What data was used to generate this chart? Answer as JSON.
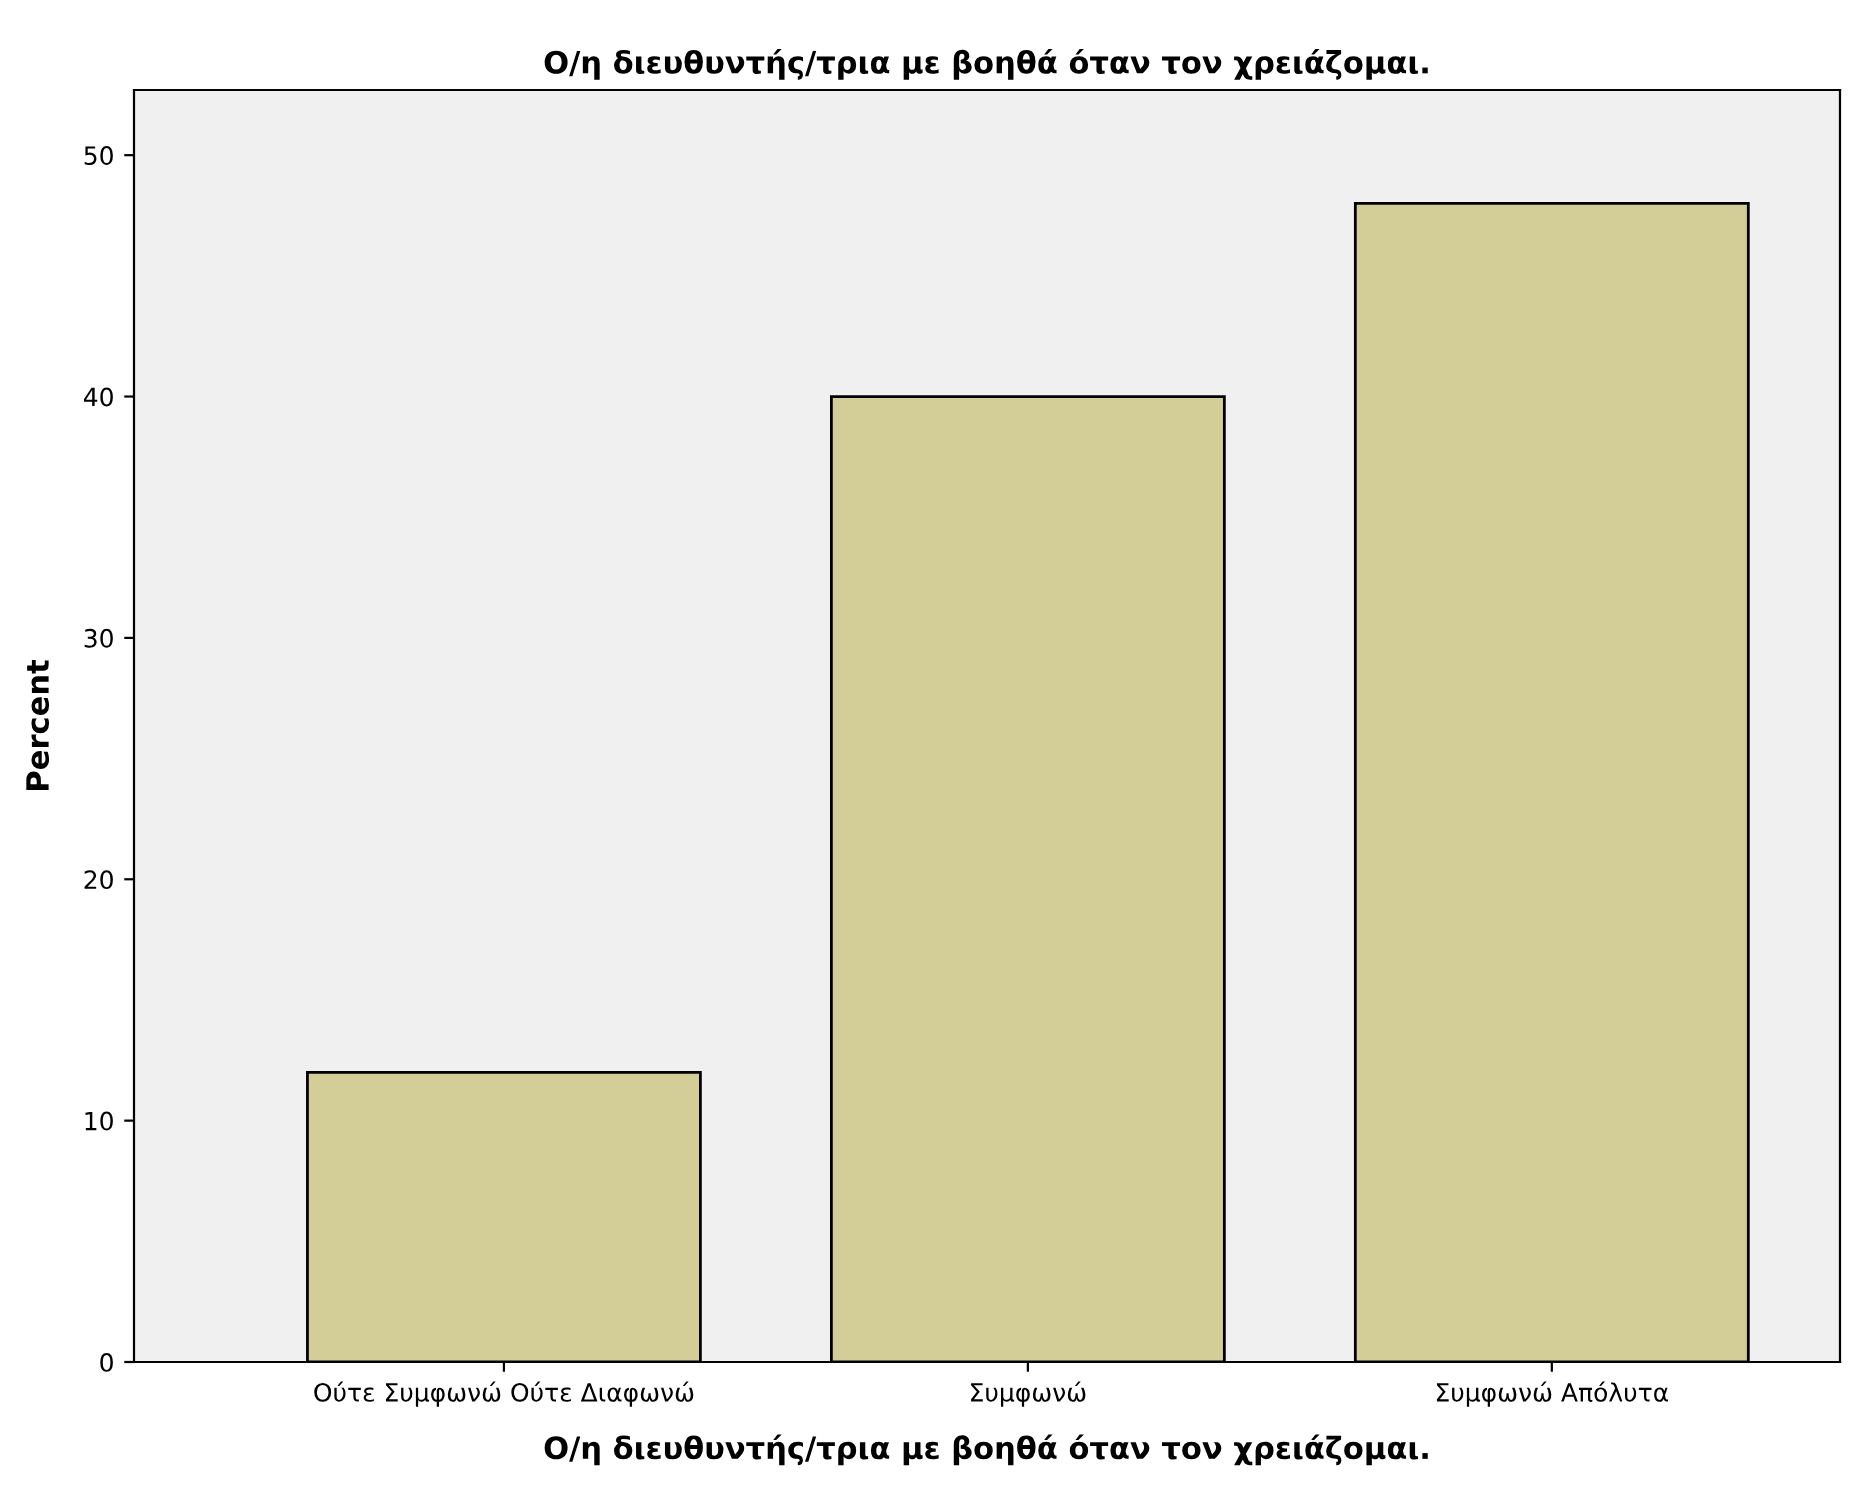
{
  "chart_data": {
    "type": "bar",
    "title": "Ο/η διευθυντής/τρια με βοηθά όταν τον χρειάζομαι.",
    "xlabel": "Ο/η διευθυντής/τρια με βοηθά όταν τον χρειάζομαι.",
    "ylabel": "Percent",
    "categories": [
      "Ούτε Συμφωνώ Ούτε Διαφωνώ",
      "Συμφωνώ",
      "Συμφωνώ Απόλυτα"
    ],
    "values": [
      12,
      40,
      48
    ],
    "color": "#d3ce97",
    "ylim": [
      0,
      52.7
    ],
    "yticks": [
      0,
      10,
      20,
      30,
      40,
      50
    ],
    "grid": false,
    "legend": false
  }
}
